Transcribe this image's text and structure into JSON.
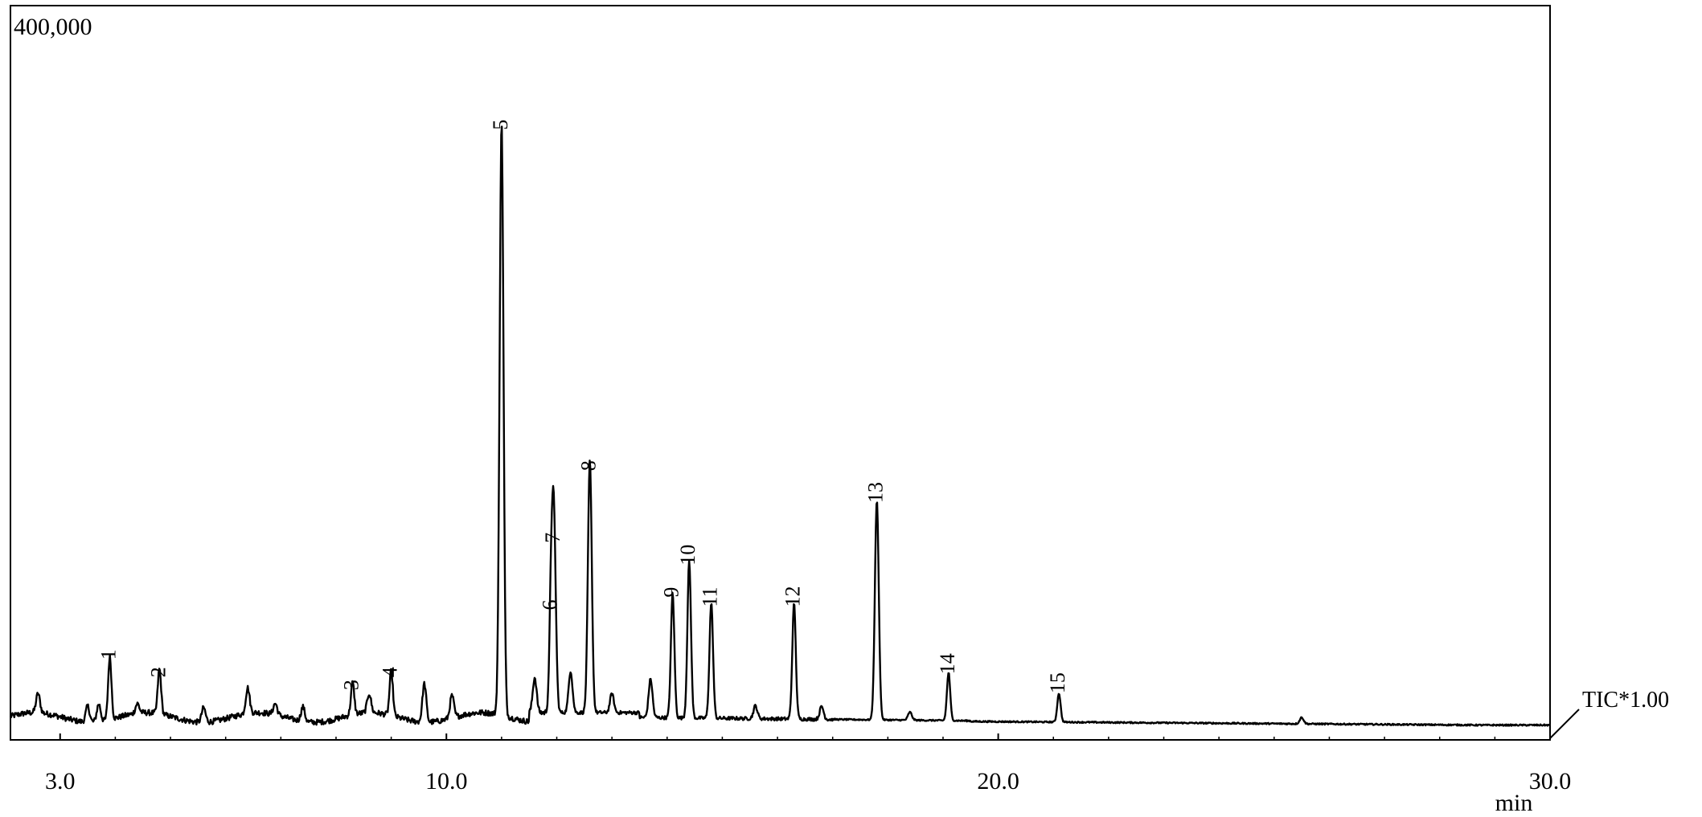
{
  "chart_data": {
    "type": "line",
    "title": "",
    "xlabel": "min",
    "ylabel": "",
    "y_top_label": "400,000",
    "trace_label": "TIC*1.00",
    "xlim": [
      2.1,
      30.0
    ],
    "ylim": [
      0,
      400000
    ],
    "x_ticks": [
      {
        "value": 3.0,
        "label": "3.0"
      },
      {
        "value": 10.0,
        "label": "10.0"
      },
      {
        "value": 20.0,
        "label": "20.0"
      },
      {
        "value": 30.0,
        "label": "30.0"
      }
    ],
    "grid": false,
    "series": [
      {
        "peaks": [
          {
            "label": "1",
            "x": 3.9,
            "y": 39000
          },
          {
            "label": "2",
            "x": 4.8,
            "y": 28000
          },
          {
            "label": "3",
            "x": 8.3,
            "y": 20000
          },
          {
            "label": "4",
            "x": 9.0,
            "y": 28000
          },
          {
            "label": "5",
            "x": 11.0,
            "y": 370000
          },
          {
            "label": "6",
            "x": 11.9,
            "y": 70000
          },
          {
            "label": "7",
            "x": 11.95,
            "y": 112000
          },
          {
            "label": "8",
            "x": 12.6,
            "y": 157000
          },
          {
            "label": "9",
            "x": 14.1,
            "y": 78000
          },
          {
            "label": "10",
            "x": 14.4,
            "y": 98000
          },
          {
            "label": "11",
            "x": 14.8,
            "y": 72000
          },
          {
            "label": "12",
            "x": 16.3,
            "y": 72000
          },
          {
            "label": "13",
            "x": 17.8,
            "y": 137000
          },
          {
            "label": "14",
            "x": 19.1,
            "y": 30000
          },
          {
            "label": "15",
            "x": 21.1,
            "y": 18000
          }
        ],
        "minor_peaks": [
          {
            "x": 2.6,
            "y": 12000
          },
          {
            "x": 3.5,
            "y": 10000
          },
          {
            "x": 3.7,
            "y": 11000
          },
          {
            "x": 4.4,
            "y": 6000
          },
          {
            "x": 5.6,
            "y": 9000
          },
          {
            "x": 6.4,
            "y": 16000
          },
          {
            "x": 6.9,
            "y": 7000
          },
          {
            "x": 7.4,
            "y": 9000
          },
          {
            "x": 8.6,
            "y": 12000
          },
          {
            "x": 9.6,
            "y": 24000
          },
          {
            "x": 10.1,
            "y": 14000
          },
          {
            "x": 11.6,
            "y": 22000
          },
          {
            "x": 12.25,
            "y": 26000
          },
          {
            "x": 13.0,
            "y": 12000
          },
          {
            "x": 13.7,
            "y": 24000
          },
          {
            "x": 15.6,
            "y": 8000
          },
          {
            "x": 16.8,
            "y": 8000
          },
          {
            "x": 18.4,
            "y": 5000
          },
          {
            "x": 25.5,
            "y": 4000
          }
        ]
      }
    ]
  }
}
